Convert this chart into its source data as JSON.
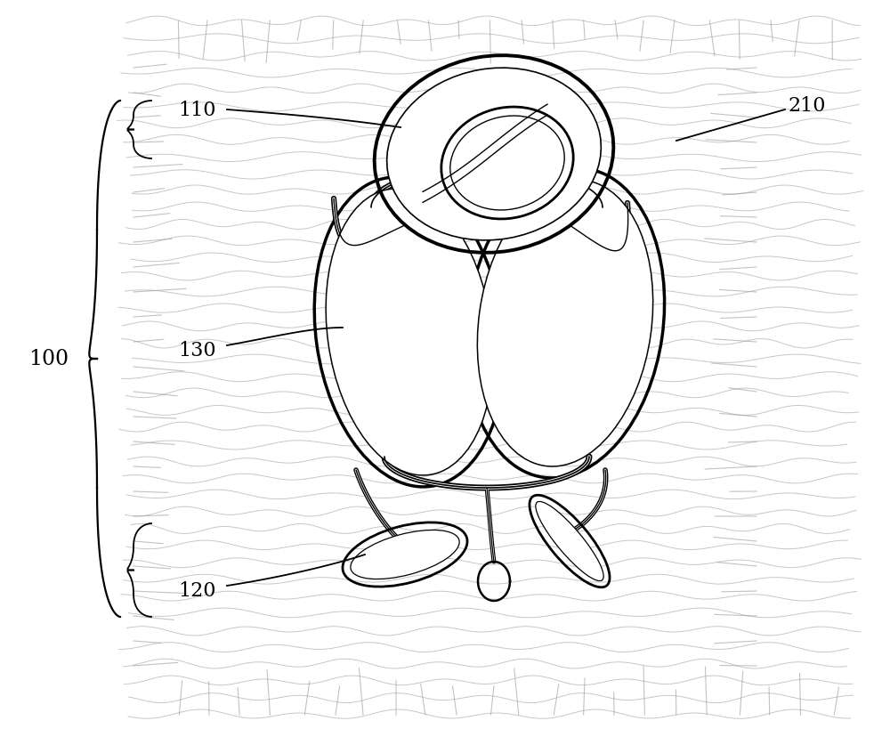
{
  "bg_color": "#ffffff",
  "line_color": "#000000",
  "gray_color": "#999999",
  "label_100": "100",
  "label_110": "110",
  "label_120": "120",
  "label_130": "130",
  "label_210": "210",
  "figsize": [
    10.0,
    8.29
  ],
  "dpi": 100
}
